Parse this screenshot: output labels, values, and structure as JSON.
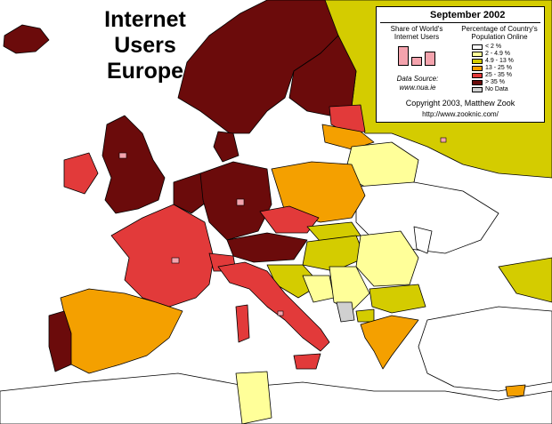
{
  "map": {
    "title_lines": [
      "Internet",
      "Users",
      "Europe"
    ]
  },
  "legend": {
    "title": "September 2002",
    "share_heading": "Share of World's Internet Users",
    "percent_heading": "Percentage of Country's Population Online",
    "classes": [
      {
        "label": "< 2 %",
        "color": "#ffffff"
      },
      {
        "label": "2 - 4.9 %",
        "color": "#ffff99"
      },
      {
        "label": "4.9 - 13 %",
        "color": "#d4cc00"
      },
      {
        "label": "13 - 25 %",
        "color": "#f4a000"
      },
      {
        "label": "25 - 35 %",
        "color": "#e23a3a"
      },
      {
        "label": "> 35 %",
        "color": "#6b0b0b"
      },
      {
        "label": "No Data",
        "color": "#d0d0d0"
      }
    ],
    "data_source_label": "Data Source:",
    "data_source_url": "www.nua.ie",
    "copyright": "Copyright 2003, Matthew Zook",
    "website": "http://www.zooknic.com/"
  },
  "colors": {
    "sea": "#ffffff",
    "border": "#000000",
    "share_bar": "#f4a3ad"
  }
}
